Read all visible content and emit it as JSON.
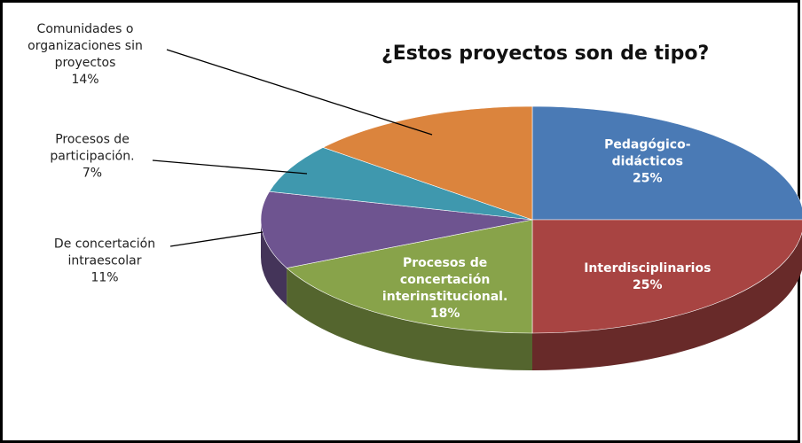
{
  "chart_data": {
    "type": "pie",
    "title": "¿Estos proyectos son de tipo?",
    "categories": [
      "Pedagógico-didácticos",
      "Interdisciplinarios",
      "Procesos de concertación interinstitucional.",
      "De concertación intraescolar",
      "Procesos de participación.",
      "Comunidades o organizaciones sin proyectos"
    ],
    "values": [
      25,
      25,
      18,
      11,
      7,
      14
    ],
    "value_labels": [
      "25%",
      "25%",
      "18%",
      "11%",
      "7%",
      "14%"
    ],
    "colors": [
      "#4a7ab5",
      "#a84442",
      "#88a34a",
      "#6e5490",
      "#3f98ae",
      "#db843d"
    ]
  }
}
